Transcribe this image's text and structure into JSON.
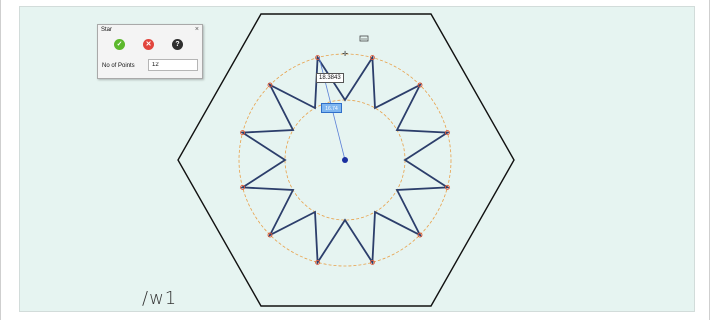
{
  "dialog": {
    "title": "Star",
    "close_glyph": "×",
    "ok_icon": "checkmark-icon",
    "cancel_icon": "cancel-icon",
    "help_icon": "help-icon",
    "ok_glyph": "✓",
    "cancel_glyph": "✕",
    "help_glyph": "?",
    "field_label": "No of Points",
    "field_value": "12"
  },
  "drawing": {
    "dimension_value": "18.3843",
    "edit_value": "16.74",
    "corner_text": "/w1",
    "star_points": 12,
    "colors": {
      "canvas": "#e6f4f1",
      "hexagon": "#111111",
      "star": "#2c3e6b",
      "guide_circle": "#e8a14a",
      "vertex": "#e05a3a",
      "center": "#1a2fa0"
    }
  }
}
